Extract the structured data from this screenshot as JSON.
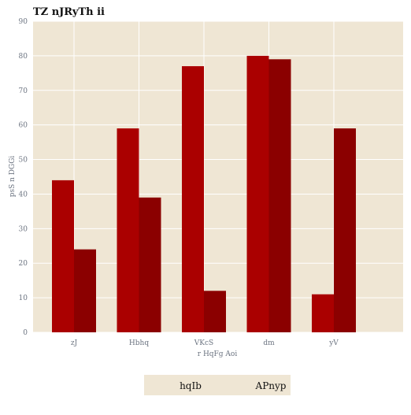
{
  "chart_data": {
    "type": "bar",
    "title": "TZ nJRyTh ii",
    "xlabel": "r HqFg Aoi",
    "ylabel": "psS n DGGi",
    "categories": [
      "zJ",
      "Hbhq",
      "VKcS",
      "dm",
      "yV"
    ],
    "series": [
      {
        "name": "hqIb",
        "values": [
          44,
          59,
          77,
          80,
          11
        ],
        "color": "#aa0000"
      },
      {
        "name": "APnyp",
        "values": [
          24,
          39,
          12,
          79,
          59
        ],
        "color": "#8b0000"
      }
    ],
    "ylim": [
      0,
      90
    ],
    "yticks": [
      0,
      10,
      20,
      30,
      40,
      50,
      60,
      70,
      80,
      90
    ],
    "grid": true,
    "legend_position": "bottom-center",
    "background": "#efe6d4",
    "grid_color": "#ffffff"
  }
}
